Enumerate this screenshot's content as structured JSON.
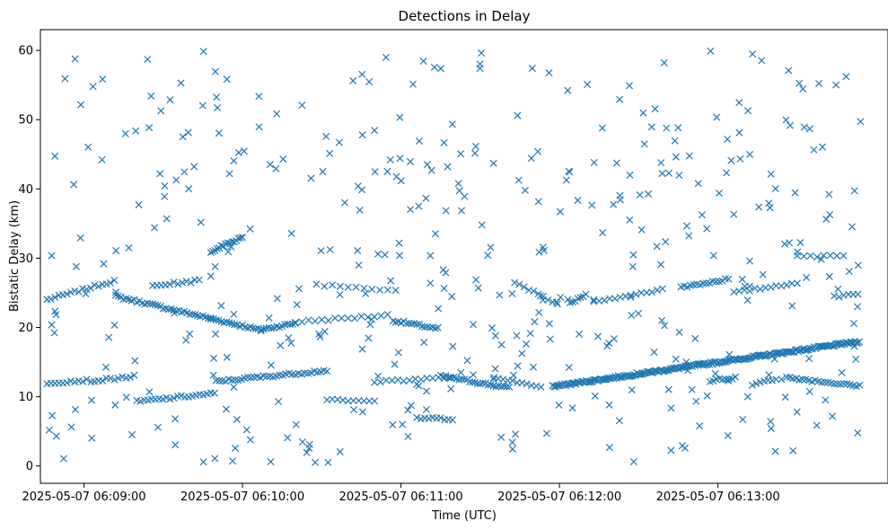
{
  "chart_data": {
    "type": "scatter",
    "title": "Detections in Delay",
    "xlabel": "Time (UTC)",
    "ylabel": "Bistatic Delay (km)",
    "marker": "x",
    "color": "#1f77b4",
    "x_unit": "seconds since 2025-05-07 06:08:00 UTC",
    "xlim": [
      43.5,
      363
    ],
    "ylim": [
      -2.5,
      63
    ],
    "x_ticks": [
      {
        "value": 60,
        "label": "2025-05-07 06:09:00"
      },
      {
        "value": 120,
        "label": "2025-05-07 06:10:00"
      },
      {
        "value": 180,
        "label": "2025-05-07 06:11:00"
      },
      {
        "value": 240,
        "label": "2025-05-07 06:12:00"
      },
      {
        "value": 300,
        "label": "2025-05-07 06:13:00"
      }
    ],
    "y_ticks": [
      0,
      10,
      20,
      30,
      40,
      50,
      60
    ],
    "grid": false,
    "tracks": [
      {
        "x": [
          46,
          72
        ],
        "y": [
          24.0,
          26.8
        ],
        "step": 1.5
      },
      {
        "x": [
          72,
          127
        ],
        "y": [
          24.5,
          19.6
        ],
        "step": 1.0
      },
      {
        "x": [
          127,
          140
        ],
        "y": [
          19.7,
          20.6
        ],
        "step": 1.0
      },
      {
        "x": [
          140,
          176
        ],
        "y": [
          20.8,
          21.8
        ],
        "step": 2.5
      },
      {
        "x": [
          177,
          194
        ],
        "y": [
          21.0,
          19.8
        ],
        "step": 1.0
      },
      {
        "x": [
          195,
          220
        ],
        "y": [
          13.0,
          11.3
        ],
        "step": 1.0
      },
      {
        "x": [
          221,
          235
        ],
        "y": [
          11.5,
          25.0
        ],
        "step": 1.6
      },
      {
        "x": [
          238,
          354
        ],
        "y": [
          11.5,
          18.0
        ],
        "step": 0.55
      },
      {
        "x": [
          286,
          304
        ],
        "y": [
          25.8,
          27.0
        ],
        "step": 1.2
      },
      {
        "x": [
          306,
          330
        ],
        "y": [
          25.0,
          26.5
        ],
        "step": 2.0
      },
      {
        "x": [
          330,
          348
        ],
        "y": [
          30.2,
          30.5
        ],
        "step": 2.5
      },
      {
        "x": [
          344,
          354
        ],
        "y": [
          24.5,
          24.8
        ],
        "step": 1.8
      },
      {
        "x": [
          46,
          62
        ],
        "y": [
          12.0,
          12.4
        ],
        "step": 1.5
      },
      {
        "x": [
          64,
          80
        ],
        "y": [
          12.3,
          13.0
        ],
        "step": 1.5
      },
      {
        "x": [
          80,
          110
        ],
        "y": [
          9.3,
          10.5
        ],
        "step": 1.4
      },
      {
        "x": [
          110,
          152
        ],
        "y": [
          12.2,
          13.8
        ],
        "step": 1.2
      },
      {
        "x": [
          152,
          170
        ],
        "y": [
          9.5,
          9.3
        ],
        "step": 2.0
      },
      {
        "x": [
          108,
          120
        ],
        "y": [
          31.0,
          33.0
        ],
        "step": 0.8
      },
      {
        "x": [
          86,
          104
        ],
        "y": [
          26.0,
          26.8
        ],
        "step": 1.6
      },
      {
        "x": [
          244,
          250
        ],
        "y": [
          23.5,
          24.8
        ],
        "step": 1.0
      },
      {
        "x": [
          297,
          307
        ],
        "y": [
          12.3,
          12.8
        ],
        "step": 1.2
      },
      {
        "x": [
          326,
          354
        ],
        "y": [
          12.8,
          11.5
        ],
        "step": 1.2
      },
      {
        "x": [
          170,
          200
        ],
        "y": [
          12.2,
          12.8
        ],
        "step": 2.2
      },
      {
        "x": [
          215,
          234
        ],
        "y": [
          12.6,
          11.5
        ],
        "step": 1.8
      },
      {
        "x": [
          223,
          240
        ],
        "y": [
          26.5,
          23.2
        ],
        "step": 1.8
      },
      {
        "x": [
          148,
          178
        ],
        "y": [
          26.2,
          25.4
        ],
        "step": 3.0
      },
      {
        "x": [
          253,
          280
        ],
        "y": [
          23.8,
          25.5
        ],
        "step": 2.0
      },
      {
        "x": [
          186,
          200
        ],
        "y": [
          6.9,
          6.8
        ],
        "step": 1.5
      },
      {
        "x": [
          313,
          322
        ],
        "y": [
          11.8,
          12.5
        ],
        "step": 1.5
      }
    ],
    "noise": {
      "x_range": [
        46,
        354
      ],
      "y_range": [
        0.5,
        60
      ],
      "count": 420,
      "seed": 7
    }
  }
}
